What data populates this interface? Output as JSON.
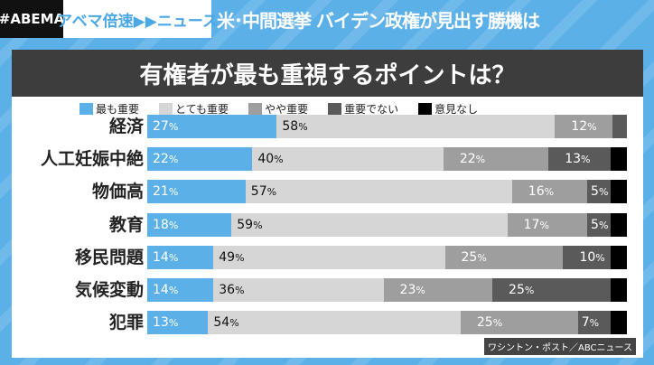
{
  "header": {
    "brand": "#ABEMA",
    "show": "アベマ倍速▶▶ニュース",
    "headline": "米･中間選挙 バイデン政権が見出す勝機は"
  },
  "source": "ワシントン・ポスト／ABCニュース",
  "chart_data": {
    "type": "bar",
    "orientation": "horizontal-stacked-100",
    "title": "有権者が最も重視するポイントは？",
    "legend_position": "top",
    "series": [
      {
        "name": "最も重要",
        "color": "#5cb0e8",
        "text_color": "#ffffff"
      },
      {
        "name": "とても重要",
        "color": "#d6d6d6",
        "text_color": "#111111"
      },
      {
        "name": "やや重要",
        "color": "#9e9e9e",
        "text_color": "#ffffff"
      },
      {
        "name": "重要でない",
        "color": "#5a5a5a",
        "text_color": "#ffffff"
      },
      {
        "name": "意見なし",
        "color": "#000000",
        "text_color": "#ffffff"
      }
    ],
    "categories": [
      "経済",
      "人工妊娠中絶",
      "物価高",
      "教育",
      "移民問題",
      "気候変動",
      "犯罪"
    ],
    "values": [
      [
        27,
        58,
        12,
        3,
        0
      ],
      [
        22,
        40,
        22,
        13,
        3
      ],
      [
        21,
        57,
        16,
        5,
        1
      ],
      [
        18,
        59,
        17,
        5,
        1
      ],
      [
        14,
        49,
        25,
        10,
        2
      ],
      [
        14,
        36,
        23,
        25,
        2
      ],
      [
        13,
        54,
        25,
        7,
        1
      ]
    ],
    "labels": [
      [
        "27",
        "58",
        "12",
        null,
        null
      ],
      [
        "22",
        "40",
        "22",
        "13",
        null
      ],
      [
        "21",
        "57",
        "16",
        "5",
        null
      ],
      [
        "18",
        "59",
        "17",
        "5",
        null
      ],
      [
        "14",
        "49",
        "25",
        "10",
        null
      ],
      [
        "14",
        "36",
        "23",
        "25",
        null
      ],
      [
        "13",
        "54",
        "25",
        "7",
        null
      ]
    ],
    "unit": "%"
  }
}
